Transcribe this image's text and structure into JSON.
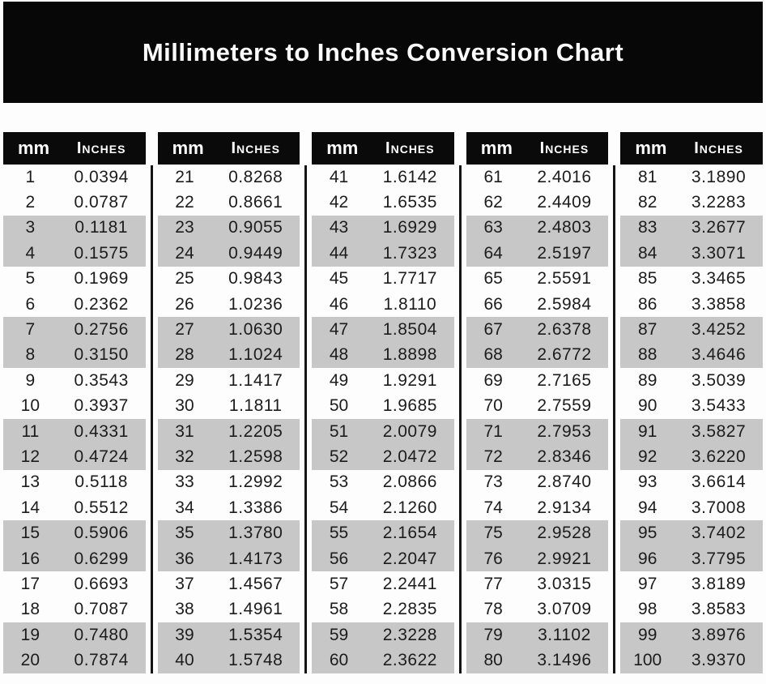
{
  "chart_data": {
    "type": "table",
    "title": "Millimeters to Inches Conversion Chart",
    "column_headers": [
      "mm",
      "Inches"
    ],
    "striping": "rows shaded gray in alternating pairs: rows 3-4, 7-8, 11-12, 15-16, 19-20 of each table",
    "tables": [
      {
        "mm_range": "1-20",
        "rows": [
          [
            1,
            "0.0394"
          ],
          [
            2,
            "0.0787"
          ],
          [
            3,
            "0.1181"
          ],
          [
            4,
            "0.1575"
          ],
          [
            5,
            "0.1969"
          ],
          [
            6,
            "0.2362"
          ],
          [
            7,
            "0.2756"
          ],
          [
            8,
            "0.3150"
          ],
          [
            9,
            "0.3543"
          ],
          [
            10,
            "0.3937"
          ],
          [
            11,
            "0.4331"
          ],
          [
            12,
            "0.4724"
          ],
          [
            13,
            "0.5118"
          ],
          [
            14,
            "0.5512"
          ],
          [
            15,
            "0.5906"
          ],
          [
            16,
            "0.6299"
          ],
          [
            17,
            "0.6693"
          ],
          [
            18,
            "0.7087"
          ],
          [
            19,
            "0.7480"
          ],
          [
            20,
            "0.7874"
          ]
        ]
      },
      {
        "mm_range": "21-40",
        "rows": [
          [
            21,
            "0.8268"
          ],
          [
            22,
            "0.8661"
          ],
          [
            23,
            "0.9055"
          ],
          [
            24,
            "0.9449"
          ],
          [
            25,
            "0.9843"
          ],
          [
            26,
            "1.0236"
          ],
          [
            27,
            "1.0630"
          ],
          [
            28,
            "1.1024"
          ],
          [
            29,
            "1.1417"
          ],
          [
            30,
            "1.1811"
          ],
          [
            31,
            "1.2205"
          ],
          [
            32,
            "1.2598"
          ],
          [
            33,
            "1.2992"
          ],
          [
            34,
            "1.3386"
          ],
          [
            35,
            "1.3780"
          ],
          [
            36,
            "1.4173"
          ],
          [
            37,
            "1.4567"
          ],
          [
            38,
            "1.4961"
          ],
          [
            39,
            "1.5354"
          ],
          [
            40,
            "1.5748"
          ]
        ]
      },
      {
        "mm_range": "41-60",
        "rows": [
          [
            41,
            "1.6142"
          ],
          [
            42,
            "1.6535"
          ],
          [
            43,
            "1.6929"
          ],
          [
            44,
            "1.7323"
          ],
          [
            45,
            "1.7717"
          ],
          [
            46,
            "1.8110"
          ],
          [
            47,
            "1.8504"
          ],
          [
            48,
            "1.8898"
          ],
          [
            49,
            "1.9291"
          ],
          [
            50,
            "1.9685"
          ],
          [
            51,
            "2.0079"
          ],
          [
            52,
            "2.0472"
          ],
          [
            53,
            "2.0866"
          ],
          [
            54,
            "2.1260"
          ],
          [
            55,
            "2.1654"
          ],
          [
            56,
            "2.2047"
          ],
          [
            57,
            "2.2441"
          ],
          [
            58,
            "2.2835"
          ],
          [
            59,
            "2.3228"
          ],
          [
            60,
            "2.3622"
          ]
        ]
      },
      {
        "mm_range": "61-80",
        "rows": [
          [
            61,
            "2.4016"
          ],
          [
            62,
            "2.4409"
          ],
          [
            63,
            "2.4803"
          ],
          [
            64,
            "2.5197"
          ],
          [
            65,
            "2.5591"
          ],
          [
            66,
            "2.5984"
          ],
          [
            67,
            "2.6378"
          ],
          [
            68,
            "2.6772"
          ],
          [
            69,
            "2.7165"
          ],
          [
            70,
            "2.7559"
          ],
          [
            71,
            "2.7953"
          ],
          [
            72,
            "2.8346"
          ],
          [
            73,
            "2.8740"
          ],
          [
            74,
            "2.9134"
          ],
          [
            75,
            "2.9528"
          ],
          [
            76,
            "2.9921"
          ],
          [
            77,
            "3.0315"
          ],
          [
            78,
            "3.0709"
          ],
          [
            79,
            "3.1102"
          ],
          [
            80,
            "3.1496"
          ]
        ]
      },
      {
        "mm_range": "81-100",
        "rows": [
          [
            81,
            "3.1890"
          ],
          [
            82,
            "3.2283"
          ],
          [
            83,
            "3.2677"
          ],
          [
            84,
            "3.3071"
          ],
          [
            85,
            "3.3465"
          ],
          [
            86,
            "3.3858"
          ],
          [
            87,
            "3.4252"
          ],
          [
            88,
            "3.4646"
          ],
          [
            89,
            "3.5039"
          ],
          [
            90,
            "3.5433"
          ],
          [
            91,
            "3.5827"
          ],
          [
            92,
            "3.6220"
          ],
          [
            93,
            "3.6614"
          ],
          [
            94,
            "3.7008"
          ],
          [
            95,
            "3.7402"
          ],
          [
            96,
            "3.7795"
          ],
          [
            97,
            "3.8189"
          ],
          [
            98,
            "3.8583"
          ],
          [
            99,
            "3.8976"
          ],
          [
            100,
            "3.9370"
          ]
        ]
      }
    ]
  },
  "colors": {
    "banner_bg": "#070707",
    "header_bg": "#0a0a0a",
    "header_text": "#ffffff",
    "stripe_gray": "#c7c7c7",
    "divider": "#141414",
    "body_text": "#1c1c1c",
    "page_bg": "#fdfdfd"
  }
}
